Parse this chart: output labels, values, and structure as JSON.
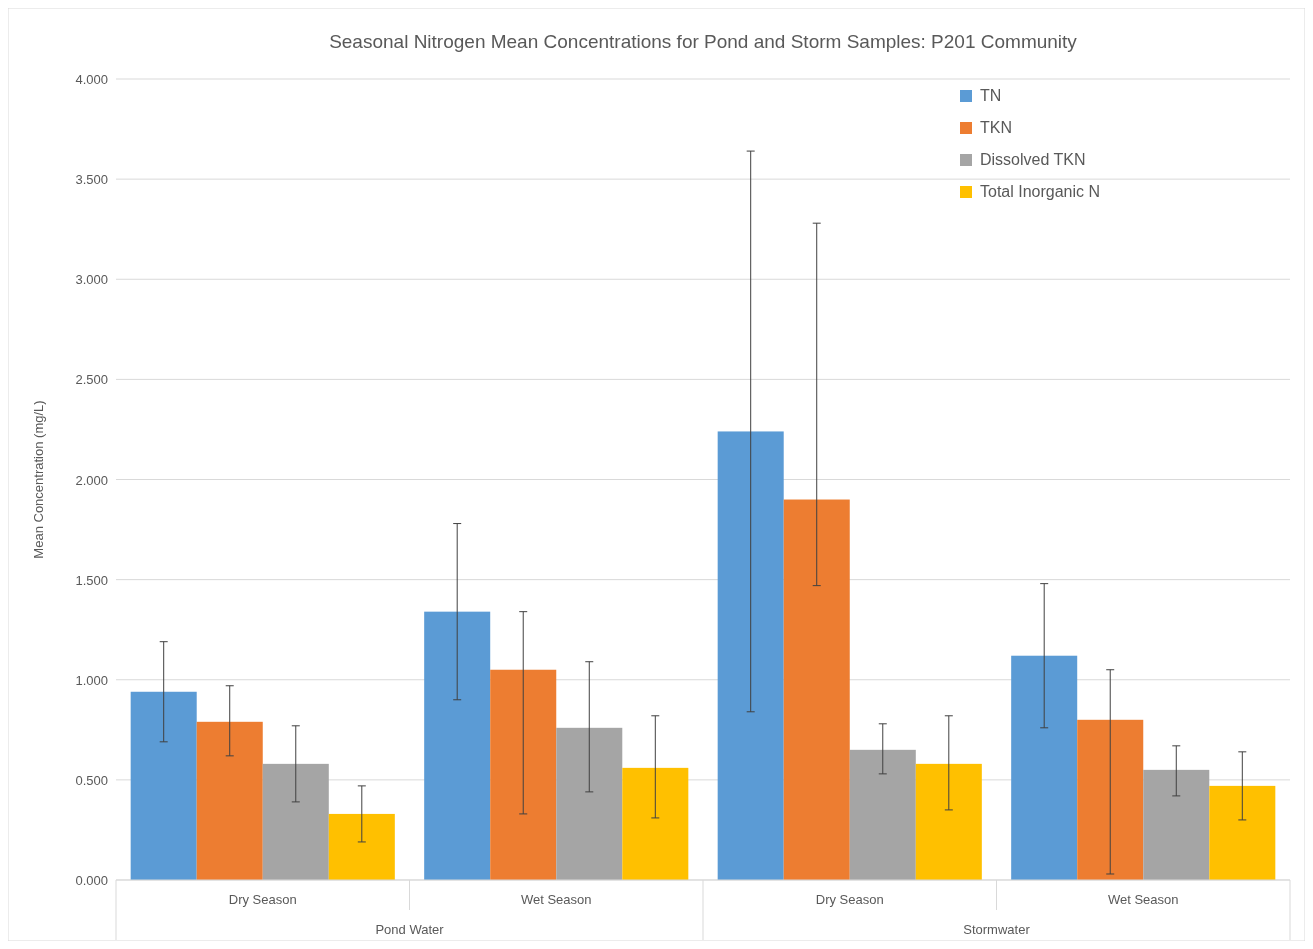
{
  "chart_data": {
    "type": "bar",
    "title": "Seasonal Nitrogen Mean Concentrations for Pond and Storm Samples: P201 Community",
    "ylabel": "Mean Concentration (mg/L)",
    "categories": [
      "Dry Season",
      "Wet Season",
      "Dry Season",
      "Wet Season"
    ],
    "annotations": [
      "Pond Water",
      "Stormwater"
    ],
    "series": [
      {
        "name": "TN",
        "color": "#5b9bd5",
        "values": [
          0.94,
          1.34,
          2.24,
          1.12
        ],
        "errors": [
          [
            0.69,
            1.19
          ],
          [
            0.9,
            1.78
          ],
          [
            0.84,
            3.64
          ],
          [
            0.76,
            1.48
          ]
        ]
      },
      {
        "name": "TKN",
        "color": "#ed7d31",
        "values": [
          0.79,
          1.05,
          1.9,
          0.8
        ],
        "errors": [
          [
            0.62,
            0.97
          ],
          [
            0.33,
            1.34
          ],
          [
            1.47,
            3.28
          ],
          [
            0.03,
            1.05
          ]
        ]
      },
      {
        "name": "Dissolved TKN",
        "color": "#a5a5a5",
        "values": [
          0.58,
          0.76,
          0.65,
          0.55
        ],
        "errors": [
          [
            0.39,
            0.77
          ],
          [
            0.44,
            1.09
          ],
          [
            0.53,
            0.78
          ],
          [
            0.42,
            0.67
          ]
        ]
      },
      {
        "name": "Total Inorganic N",
        "color": "#ffc000",
        "values": [
          0.33,
          0.56,
          0.58,
          0.47
        ],
        "errors": [
          [
            0.19,
            0.47
          ],
          [
            0.31,
            0.82
          ],
          [
            0.35,
            0.82
          ],
          [
            0.3,
            0.64
          ]
        ]
      }
    ],
    "ylim": [
      0,
      4
    ],
    "yticks": [
      {
        "value": 0,
        "label": "0.000"
      },
      {
        "value": 0.5,
        "label": "0.500"
      },
      {
        "value": 1,
        "label": "1.000"
      },
      {
        "value": 1.5,
        "label": "1.500"
      },
      {
        "value": 2,
        "label": "2.000"
      },
      {
        "value": 2.5,
        "label": "2.500"
      },
      {
        "value": 3,
        "label": "3.000"
      },
      {
        "value": 3.5,
        "label": "3.500"
      },
      {
        "value": 4,
        "label": "4.000"
      }
    ],
    "grid": "y",
    "legend": "top right"
  }
}
